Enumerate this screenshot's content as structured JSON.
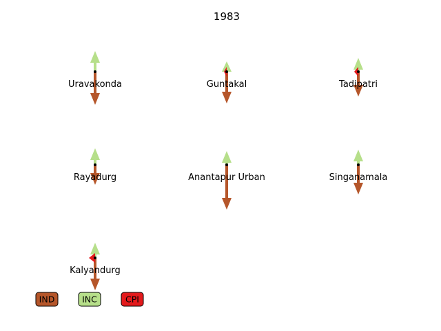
{
  "chart_data": {
    "type": "arrow-glyph",
    "title": "1983",
    "legend": [
      {
        "name": "IND",
        "color": "#b5562a"
      },
      {
        "name": "INC",
        "color": "#b6df8a"
      },
      {
        "name": "CPI",
        "color": "#e31a1c"
      }
    ],
    "constituencies": [
      {
        "name": "Uravakonda",
        "arrows": [
          {
            "party": "INC",
            "direction": "up",
            "magnitude": 0.3
          },
          {
            "party": "IND",
            "direction": "down",
            "magnitude": 0.48
          }
        ]
      },
      {
        "name": "Guntakal",
        "arrows": [
          {
            "party": "INC",
            "direction": "up",
            "magnitude": 0.15
          },
          {
            "party": "IND",
            "direction": "down",
            "magnitude": 0.46
          },
          {
            "party": "CPI",
            "direction": "left",
            "magnitude": 0.04
          }
        ]
      },
      {
        "name": "Tadipatri",
        "arrows": [
          {
            "party": "INC",
            "direction": "up",
            "magnitude": 0.2
          },
          {
            "party": "IND",
            "direction": "down",
            "magnitude": 0.36
          },
          {
            "party": "CPI",
            "direction": "left",
            "magnitude": 0.06
          }
        ]
      },
      {
        "name": "Rayadurg",
        "arrows": [
          {
            "party": "INC",
            "direction": "up",
            "magnitude": 0.24
          },
          {
            "party": "IND",
            "direction": "down",
            "magnitude": 0.29
          }
        ]
      },
      {
        "name": "Anantapur Urban",
        "arrows": [
          {
            "party": "INC",
            "direction": "up",
            "magnitude": 0.2
          },
          {
            "party": "IND",
            "direction": "down",
            "magnitude": 0.65
          }
        ]
      },
      {
        "name": "Singanamala",
        "arrows": [
          {
            "party": "INC",
            "direction": "up",
            "magnitude": 0.22
          },
          {
            "party": "IND",
            "direction": "down",
            "magnitude": 0.43
          }
        ]
      },
      {
        "name": "Kalyandurg",
        "arrows": [
          {
            "party": "INC",
            "direction": "up",
            "magnitude": 0.22
          },
          {
            "party": "IND",
            "direction": "down",
            "magnitude": 0.47
          },
          {
            "party": "CPI",
            "direction": "left",
            "magnitude": 0.09
          }
        ]
      }
    ]
  }
}
